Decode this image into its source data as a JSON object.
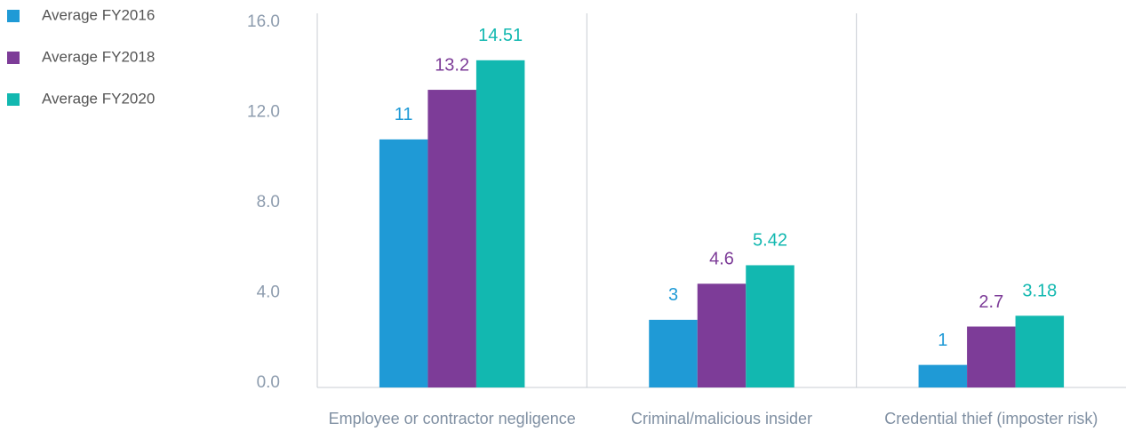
{
  "chart_data": {
    "type": "bar",
    "categories": [
      "Employee or contractor negligence",
      "Criminal/malicious insider",
      "Credential thief (imposter risk)"
    ],
    "series": [
      {
        "name": "Average FY2016",
        "color": "#1f9ad6",
        "values": [
          11,
          3,
          1
        ]
      },
      {
        "name": "Average FY2018",
        "color": "#7d3c98",
        "values": [
          13.2,
          4.6,
          2.7
        ]
      },
      {
        "name": "Average FY2020",
        "color": "#12b8b0",
        "values": [
          14.51,
          5.42,
          3.18
        ]
      }
    ],
    "ylim": [
      0,
      16
    ],
    "yticks": [
      {
        "value": 0,
        "label": "0.0"
      },
      {
        "value": 4,
        "label": "4.0"
      },
      {
        "value": 8,
        "label": "8.0"
      },
      {
        "value": 12,
        "label": "12.0"
      },
      {
        "value": 16,
        "label": "16.0"
      }
    ],
    "legend": "top-left"
  }
}
